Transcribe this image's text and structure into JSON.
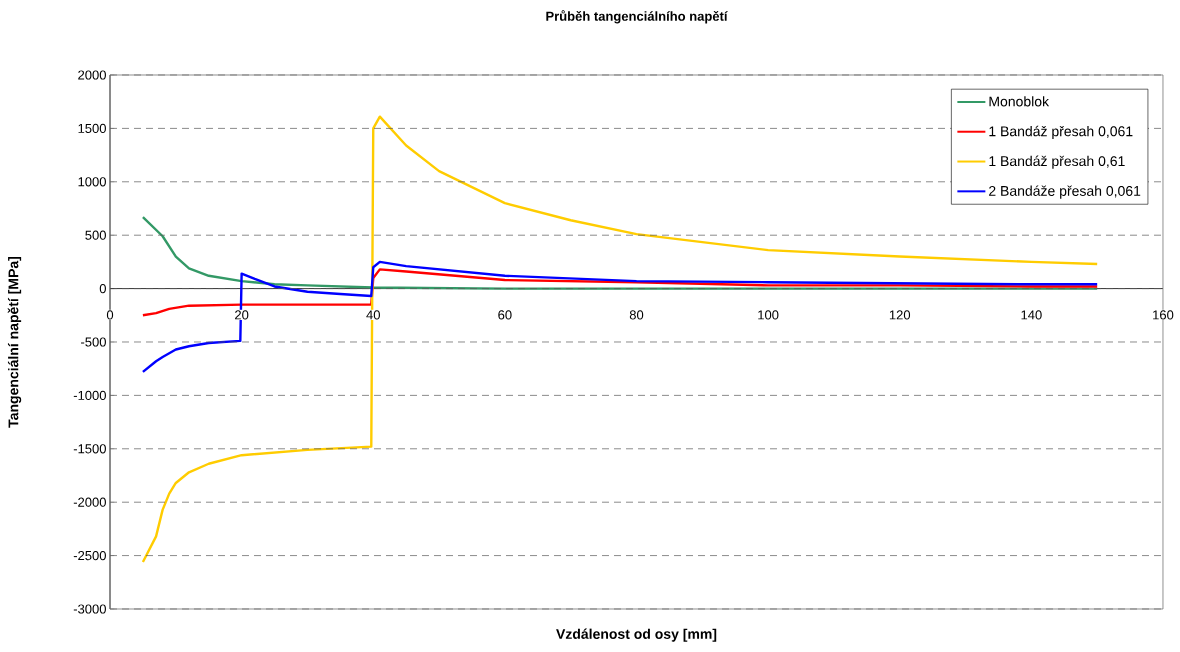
{
  "chart_data": {
    "type": "line",
    "title": "Průběh tangenciálního napětí",
    "xlabel": "Vzdálenost od osy [mm]",
    "ylabel": "Tangenciální napětí [MPa]",
    "xlim": [
      0,
      160
    ],
    "xticks": [
      0,
      20,
      40,
      60,
      80,
      100,
      120,
      140,
      160
    ],
    "ylim": [
      -3000,
      2000
    ],
    "yticks": [
      -3000,
      -2500,
      -2000,
      -1500,
      -1000,
      -500,
      0,
      500,
      1000,
      1500,
      2000
    ],
    "grid": "y",
    "legend": "top right",
    "marker": "none",
    "line_style": "solid",
    "series": [
      {
        "name": "Monoblok",
        "color": "#339966",
        "x": [
          5,
          8,
          10,
          12,
          15,
          20,
          25,
          30,
          40,
          60,
          100,
          150
        ],
        "values": [
          670,
          490,
          300,
          190,
          120,
          70,
          40,
          30,
          10,
          0,
          0,
          0
        ]
      },
      {
        "name": "1 Bandáž přesah 0,061",
        "color": "#ff0000",
        "x": [
          5,
          7,
          9,
          12,
          20,
          30,
          39.7,
          40,
          41,
          45,
          60,
          80,
          100,
          120,
          140,
          150
        ],
        "values": [
          -250,
          -230,
          -190,
          -160,
          -150,
          -150,
          -150,
          100,
          180,
          160,
          80,
          60,
          30,
          30,
          20,
          20
        ]
      },
      {
        "name": "1 Bandáž přesah 0,61",
        "color": "#ffcc00",
        "x": [
          5,
          7,
          8,
          9,
          10,
          12,
          15,
          20,
          30,
          39.7,
          40,
          41,
          45,
          50,
          60,
          70,
          80,
          100,
          110,
          120,
          140,
          150
        ],
        "values": [
          -2560,
          -2320,
          -2070,
          -1920,
          -1820,
          -1720,
          -1640,
          -1560,
          -1510,
          -1480,
          1500,
          1610,
          1340,
          1100,
          800,
          640,
          510,
          360,
          330,
          300,
          250,
          230
        ]
      },
      {
        "name": "2 Bandáže přesah 0,061",
        "color": "#0000ff",
        "x": [
          5,
          7,
          8,
          10,
          12,
          15,
          19.8,
          20,
          22,
          25,
          30,
          35,
          39.7,
          40,
          41,
          45,
          60,
          80,
          100,
          140,
          150
        ],
        "values": [
          -780,
          -680,
          -640,
          -570,
          -540,
          -510,
          -490,
          140,
          90,
          20,
          -30,
          -50,
          -70,
          200,
          250,
          210,
          120,
          70,
          60,
          40,
          40
        ]
      }
    ]
  }
}
